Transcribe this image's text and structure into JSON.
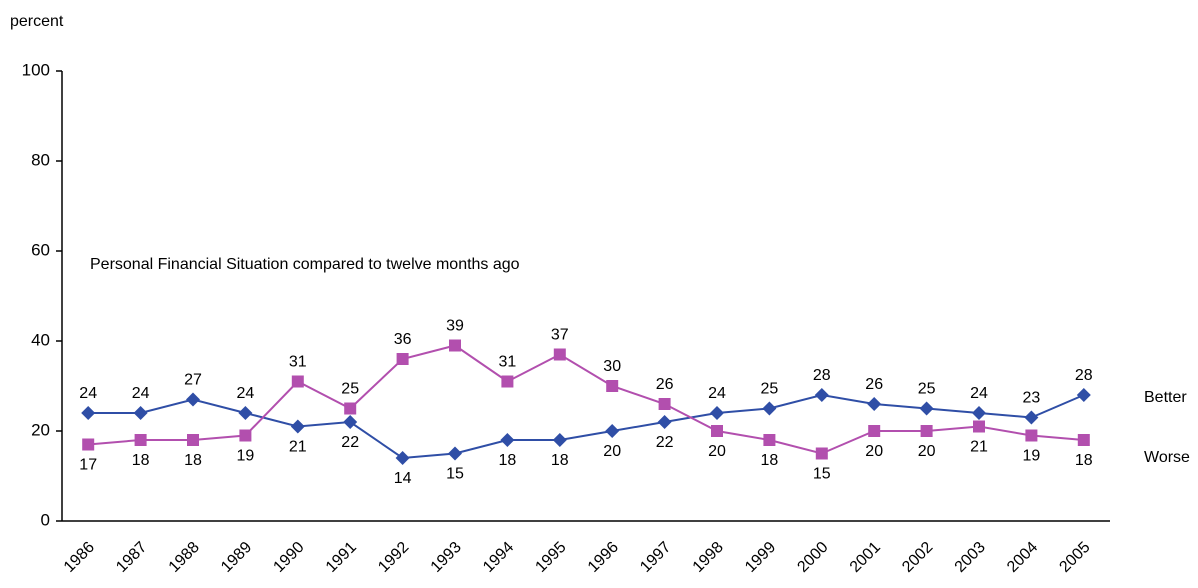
{
  "chart_data": {
    "type": "line",
    "y_label": "percent",
    "annotation": "Personal Financial Situation compared to twelve months ago",
    "categories": [
      "1986",
      "1987",
      "1988",
      "1989",
      "1990",
      "1991",
      "1992",
      "1993",
      "1994",
      "1995",
      "1996",
      "1997",
      "1998",
      "1999",
      "2000",
      "2001",
      "2002",
      "2003",
      "2004",
      "2005"
    ],
    "series": [
      {
        "name": "Better",
        "color": "#2f4ea6",
        "marker": "diamond",
        "values": [
          24,
          24,
          27,
          24,
          21,
          22,
          14,
          15,
          18,
          18,
          20,
          22,
          24,
          25,
          28,
          26,
          25,
          24,
          23,
          28
        ]
      },
      {
        "name": "Worse",
        "color": "#b24fae",
        "marker": "square",
        "values": [
          17,
          18,
          18,
          19,
          31,
          25,
          36,
          39,
          31,
          37,
          30,
          26,
          20,
          18,
          15,
          20,
          20,
          21,
          19,
          18
        ]
      }
    ],
    "ylim": [
      0,
      100
    ],
    "yticks": [
      0,
      20,
      40,
      60,
      80,
      100
    ],
    "grid": false
  }
}
